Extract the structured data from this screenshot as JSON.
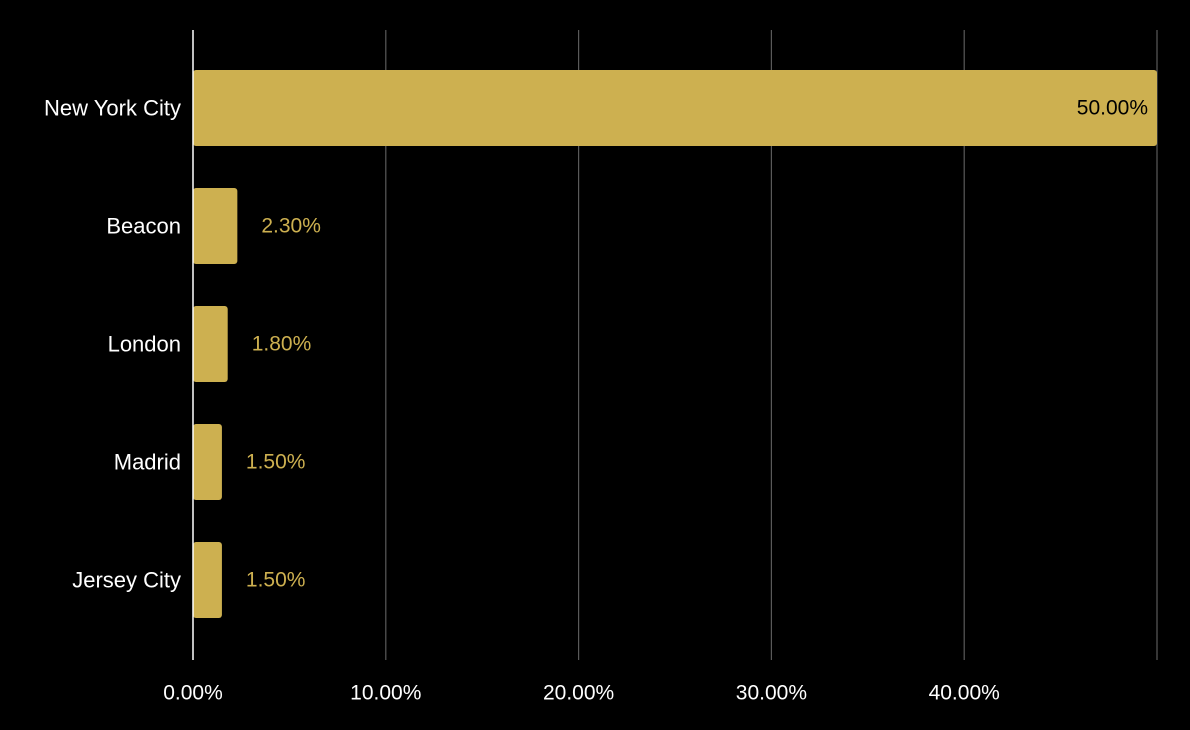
{
  "chart_data": {
    "type": "bar",
    "orientation": "horizontal",
    "title": "",
    "xlabel": "",
    "ylabel": "",
    "categories": [
      "New York City",
      "Beacon",
      "London",
      "Madrid",
      "Jersey City"
    ],
    "values": [
      50.0,
      2.3,
      1.8,
      1.5,
      1.5
    ],
    "value_labels": [
      "50.00%",
      "2.30%",
      "1.80%",
      "1.50%",
      "1.50%"
    ],
    "xlim": [
      0,
      50
    ],
    "x_ticks": [
      0,
      10,
      20,
      30,
      40
    ],
    "x_tick_labels": [
      "0.00%",
      "10.00%",
      "20.00%",
      "30.00%",
      "40.00%"
    ],
    "grid": true,
    "legend": "none",
    "colors": {
      "background": "#000000",
      "bar": "#CDB050",
      "gridline": "#5a5a5a",
      "axis_line": "#ffffff",
      "text": "#ffffff",
      "inside_label": "#000000",
      "outside_label": "#CDB050"
    }
  }
}
